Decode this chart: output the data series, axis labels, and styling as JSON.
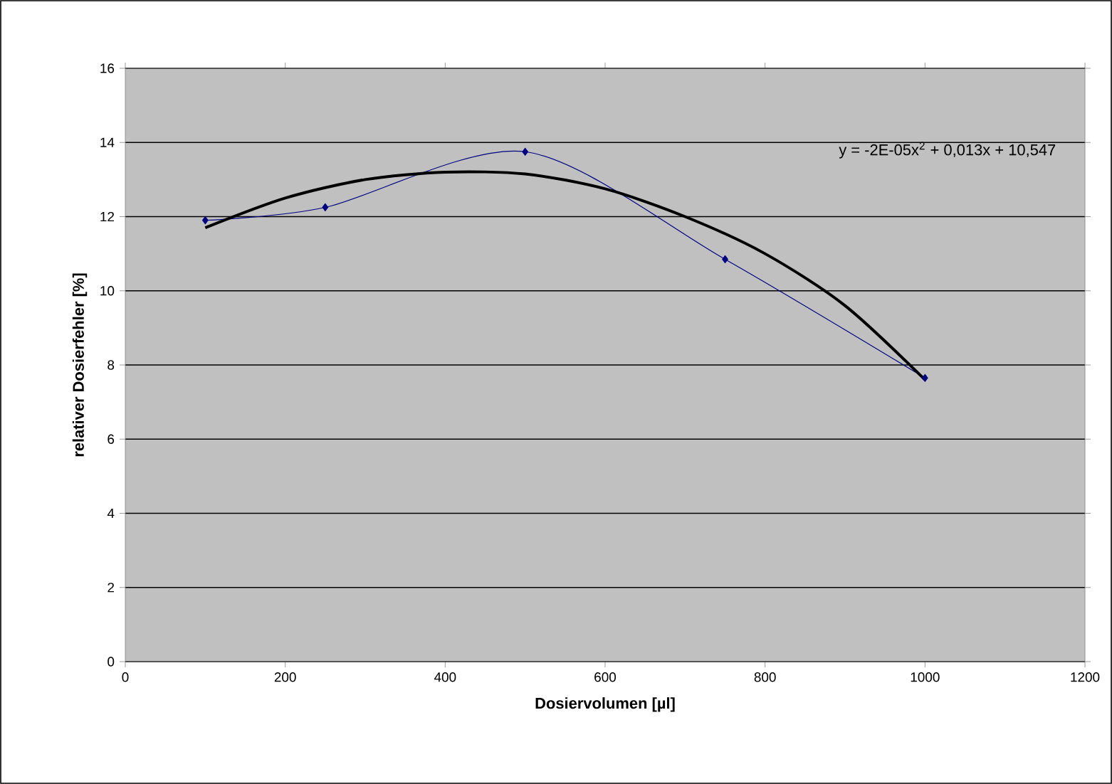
{
  "chart_data": {
    "type": "line",
    "xlabel": "Dosiervolumen [µl]",
    "ylabel": "relativer Dosierfehler [%]",
    "xlim": [
      0,
      1200
    ],
    "xticks": [
      0,
      200,
      400,
      600,
      800,
      1000,
      1200
    ],
    "ylim": [
      0,
      16
    ],
    "yticks": [
      0,
      2,
      4,
      6,
      8,
      10,
      12,
      14,
      16
    ],
    "grid": "y",
    "series": [
      {
        "x": [
          100,
          250,
          500,
          750,
          1000
        ],
        "values": [
          11.9,
          12.25,
          13.75,
          10.85,
          7.65
        ],
        "color": "#000080",
        "marker": "diamond",
        "line_style": "solid"
      },
      {
        "x": [
          100,
          200,
          300,
          400,
          500,
          600,
          700,
          800,
          900,
          1000
        ],
        "values": [
          11.7,
          12.5,
          13.0,
          13.2,
          13.15,
          12.75,
          12.0,
          11.0,
          9.6,
          7.6
        ],
        "color": "#000000",
        "marker": "none",
        "line_style": "solid"
      }
    ],
    "annotations": [
      "y = -2E-05x$^{2}$ + 0,013x + 10,547"
    ]
  }
}
